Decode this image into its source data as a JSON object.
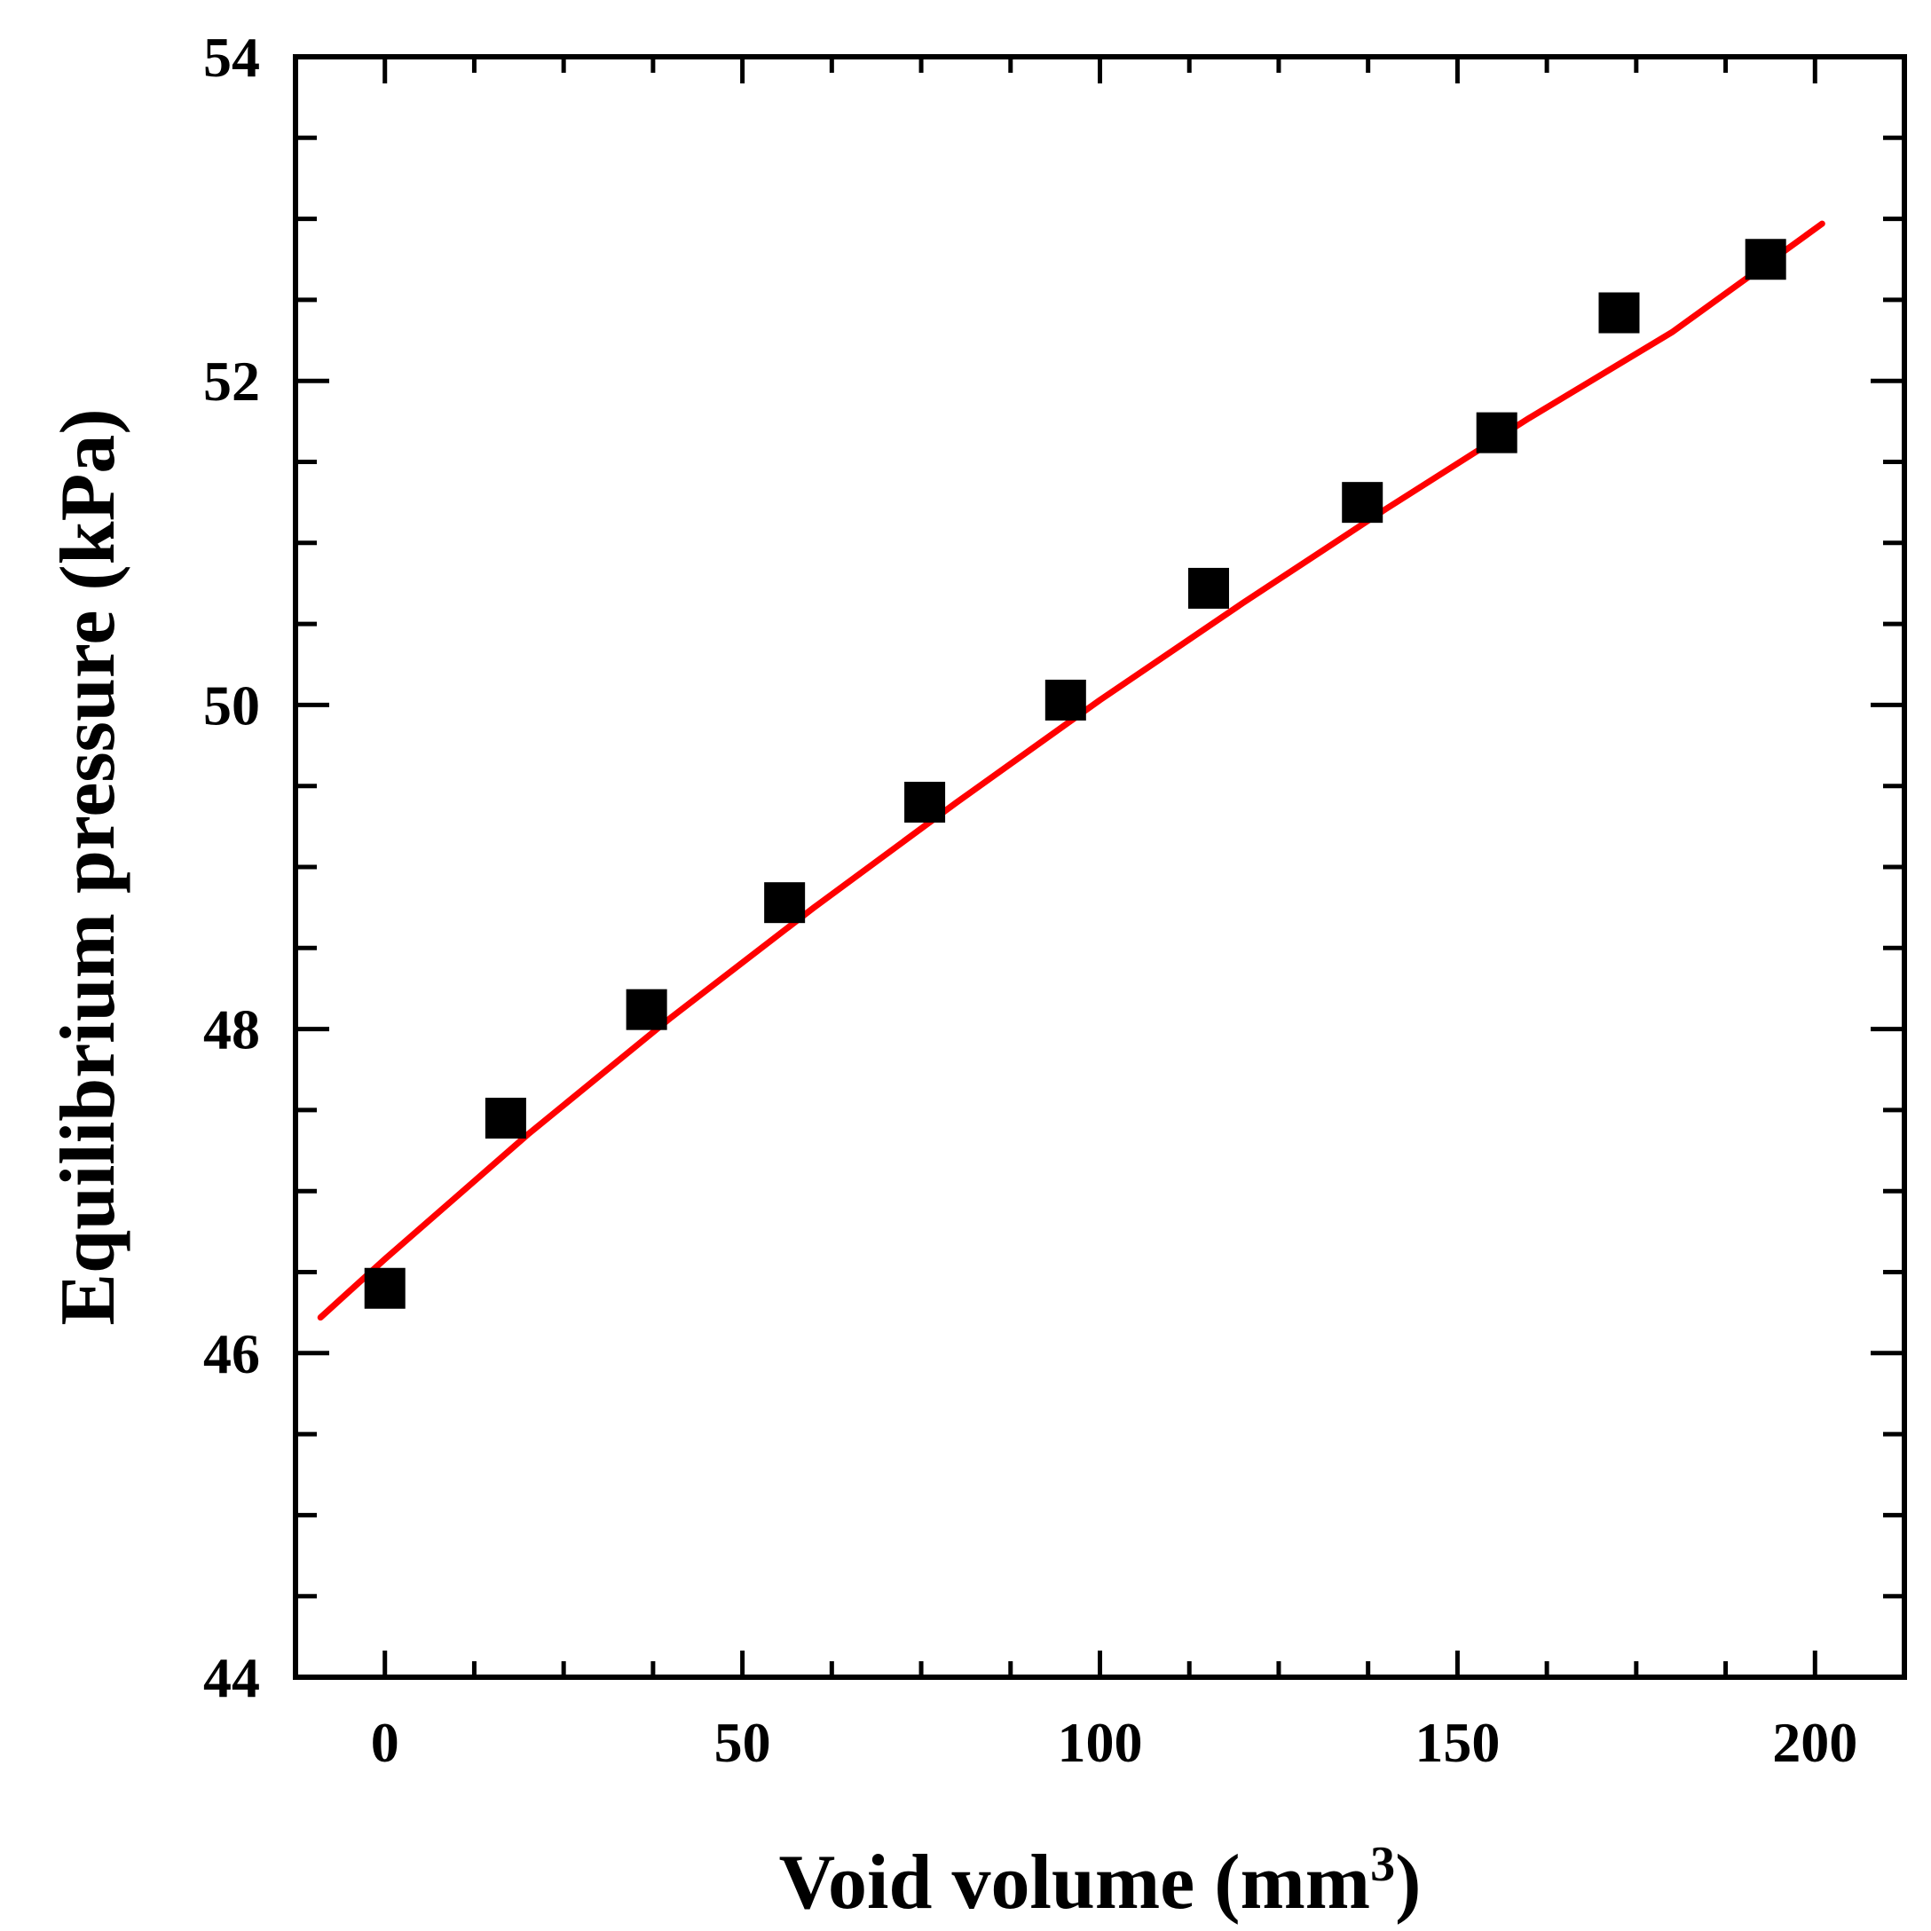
{
  "chart_data": {
    "type": "scatter",
    "xlabel": "Void volume (mm",
    "xlabel_sup": "3",
    "xlabel_close": ")",
    "ylabel": "Equilibrium pressure (kPa)",
    "xlim": [
      -12.5,
      212.5
    ],
    "ylim": [
      44,
      54
    ],
    "x_ticks": [
      0,
      50,
      100,
      150,
      200
    ],
    "y_ticks": [
      44,
      46,
      48,
      50,
      52,
      54
    ],
    "x_minor_step": 12.5,
    "y_minor_step": 0.5,
    "grid": false,
    "legend": "none",
    "series": [
      {
        "kind": "points",
        "color": "#000000",
        "x": [
          0,
          16.9,
          36.6,
          55.9,
          75.5,
          95.2,
          115.2,
          136.7,
          155.5,
          172.6,
          193.1
        ],
        "y": [
          46.4,
          47.45,
          48.12,
          48.78,
          49.4,
          50.03,
          50.72,
          51.25,
          51.68,
          52.42,
          52.75
        ]
      },
      {
        "kind": "fit",
        "color": "#ff0000",
        "x": [
          -9,
          0,
          20,
          40,
          60,
          80,
          100,
          120,
          140,
          160,
          180,
          201
        ],
        "y": [
          46.22,
          46.58,
          47.35,
          48.07,
          48.75,
          49.4,
          50.03,
          50.63,
          51.21,
          51.77,
          52.3,
          52.97
        ]
      }
    ]
  }
}
